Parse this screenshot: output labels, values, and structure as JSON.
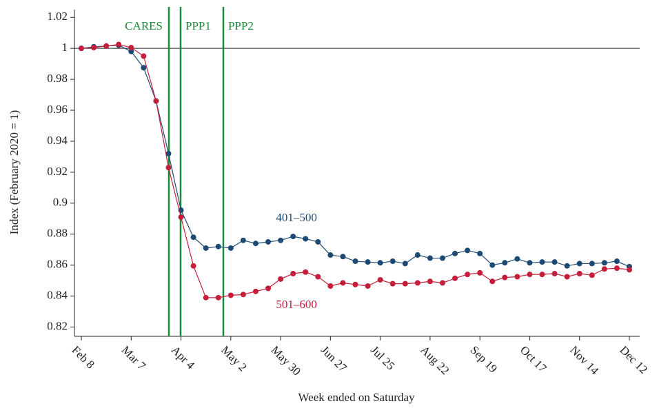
{
  "chart_data": {
    "type": "line",
    "x_label": "Week ended on Saturday",
    "y_label": "Index (February 2020 = 1)",
    "categories": [
      "Feb 8",
      null,
      null,
      null,
      "Mar 7",
      null,
      null,
      null,
      "Apr 4",
      null,
      null,
      null,
      "May 2",
      null,
      null,
      null,
      "May 30",
      null,
      null,
      null,
      "Jun 27",
      null,
      null,
      null,
      "Jul 25",
      null,
      null,
      null,
      "Aug 22",
      null,
      null,
      null,
      "Sep 19",
      null,
      null,
      null,
      "Oct 17",
      null,
      null,
      null,
      "Nov 14",
      null,
      null,
      null,
      "Dec 12"
    ],
    "series": [
      {
        "name": "401–500",
        "color": "#1d4a74",
        "values": [
          1.0,
          1.001,
          1.0015,
          1.002,
          0.998,
          0.9875,
          0.966,
          0.932,
          0.8955,
          0.878,
          0.871,
          0.872,
          0.871,
          0.876,
          0.874,
          0.875,
          0.876,
          0.8785,
          0.877,
          0.875,
          0.8665,
          0.8655,
          0.8625,
          0.862,
          0.8615,
          0.8625,
          0.861,
          0.8665,
          0.8645,
          0.8645,
          0.8675,
          0.8695,
          0.8675,
          0.86,
          0.8615,
          0.864,
          0.8615,
          0.862,
          0.862,
          0.8595,
          0.861,
          0.861,
          0.8615,
          0.8625,
          0.859
        ]
      },
      {
        "name": "501–600",
        "color": "#c41e3a",
        "values": [
          1.0,
          1.0005,
          1.0015,
          1.0025,
          1.0005,
          0.995,
          0.966,
          0.923,
          0.891,
          0.8595,
          0.839,
          0.839,
          0.8405,
          0.841,
          0.843,
          0.845,
          0.851,
          0.8545,
          0.8555,
          0.8525,
          0.8465,
          0.8485,
          0.8475,
          0.8465,
          0.8505,
          0.848,
          0.848,
          0.8485,
          0.8495,
          0.8485,
          0.8515,
          0.854,
          0.855,
          0.8495,
          0.852,
          0.8525,
          0.854,
          0.854,
          0.8545,
          0.8525,
          0.8545,
          0.8535,
          0.8575,
          0.858,
          0.857
        ]
      }
    ],
    "ylim": [
      0.814,
      1.025
    ],
    "yticks": [
      0.82,
      0.84,
      0.86,
      0.88,
      0.9,
      0.92,
      0.94,
      0.96,
      0.98,
      1,
      1.02
    ],
    "reference_line": 1,
    "events": [
      {
        "label": "CARES",
        "x": 7.03,
        "color": "#1a8a3a"
      },
      {
        "label": "PPP1",
        "x": 7.97,
        "color": "#1a8a3a"
      },
      {
        "label": "PPP2",
        "x": 11.4,
        "color": "#1a8a3a"
      }
    ]
  }
}
